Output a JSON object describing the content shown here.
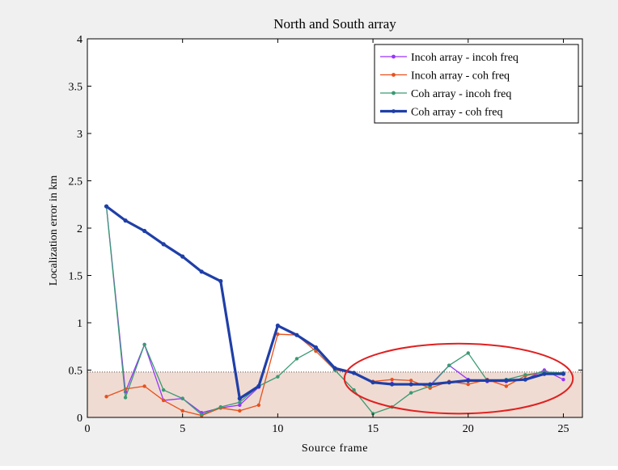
{
  "chart_data": {
    "type": "line",
    "title": "North and South array",
    "xlabel": "Source frame",
    "ylabel": "Localization error in km",
    "xlim": [
      0,
      26
    ],
    "ylim": [
      0,
      4
    ],
    "xticks": [
      0,
      5,
      10,
      15,
      20,
      25
    ],
    "yticks": [
      0,
      0.5,
      1,
      1.5,
      2,
      2.5,
      3,
      3.5,
      4
    ],
    "xtick_labels": [
      "0",
      "5",
      "10",
      "15",
      "20",
      "25"
    ],
    "ytick_labels": [
      "0",
      "0.5",
      "1",
      "1.5",
      "2",
      "2.5",
      "3",
      "3.5",
      "4"
    ],
    "grid": false,
    "legend_position": "top-right",
    "x": [
      1,
      2,
      3,
      4,
      5,
      6,
      7,
      8,
      9,
      10,
      11,
      12,
      13,
      14,
      15,
      16,
      17,
      18,
      19,
      20,
      21,
      22,
      23,
      24,
      25
    ],
    "series": [
      {
        "name": "Incoh array - incoh freq",
        "color": "#9933ff",
        "width": 1.3,
        "values": [
          2.23,
          0.27,
          0.77,
          0.18,
          0.2,
          0.05,
          0.1,
          0.13,
          0.32,
          0.97,
          0.87,
          0.73,
          0.52,
          0.47,
          0.37,
          0.36,
          0.35,
          0.34,
          0.55,
          0.4,
          0.38,
          0.38,
          0.4,
          0.5,
          0.4
        ]
      },
      {
        "name": "Incoh array - coh freq",
        "color": "#e8501c",
        "width": 1.3,
        "values": [
          0.22,
          0.3,
          0.33,
          0.18,
          0.07,
          0.02,
          0.1,
          0.07,
          0.13,
          0.88,
          0.87,
          0.7,
          0.5,
          0.47,
          0.38,
          0.4,
          0.39,
          0.31,
          0.38,
          0.35,
          0.4,
          0.33,
          0.44,
          0.48,
          0.47
        ]
      },
      {
        "name": "Coh array - incoh freq",
        "color": "#3a9a72",
        "width": 1.3,
        "values": [
          2.23,
          0.21,
          0.77,
          0.29,
          0.2,
          0.03,
          0.11,
          0.16,
          0.33,
          0.43,
          0.62,
          0.73,
          0.5,
          0.29,
          0.04,
          0.11,
          0.26,
          0.33,
          0.55,
          0.68,
          0.39,
          0.4,
          0.45,
          0.48,
          0.47
        ]
      },
      {
        "name": "Coh array - coh freq",
        "color": "#1f3fa8",
        "width": 3.2,
        "values": [
          2.23,
          2.08,
          1.97,
          1.83,
          1.7,
          1.54,
          1.44,
          0.2,
          0.33,
          0.97,
          0.87,
          0.74,
          0.52,
          0.47,
          0.37,
          0.35,
          0.35,
          0.35,
          0.37,
          0.39,
          0.39,
          0.39,
          0.4,
          0.46,
          0.46
        ]
      }
    ],
    "shaded_band": {
      "y": 0.48,
      "color": "#efdbd2",
      "line_color": "#555555"
    },
    "highlight_ellipse": {
      "cx": 19.5,
      "cy": 0.41,
      "rx": 6.0,
      "ry": 0.37,
      "color": "#e02020"
    }
  }
}
